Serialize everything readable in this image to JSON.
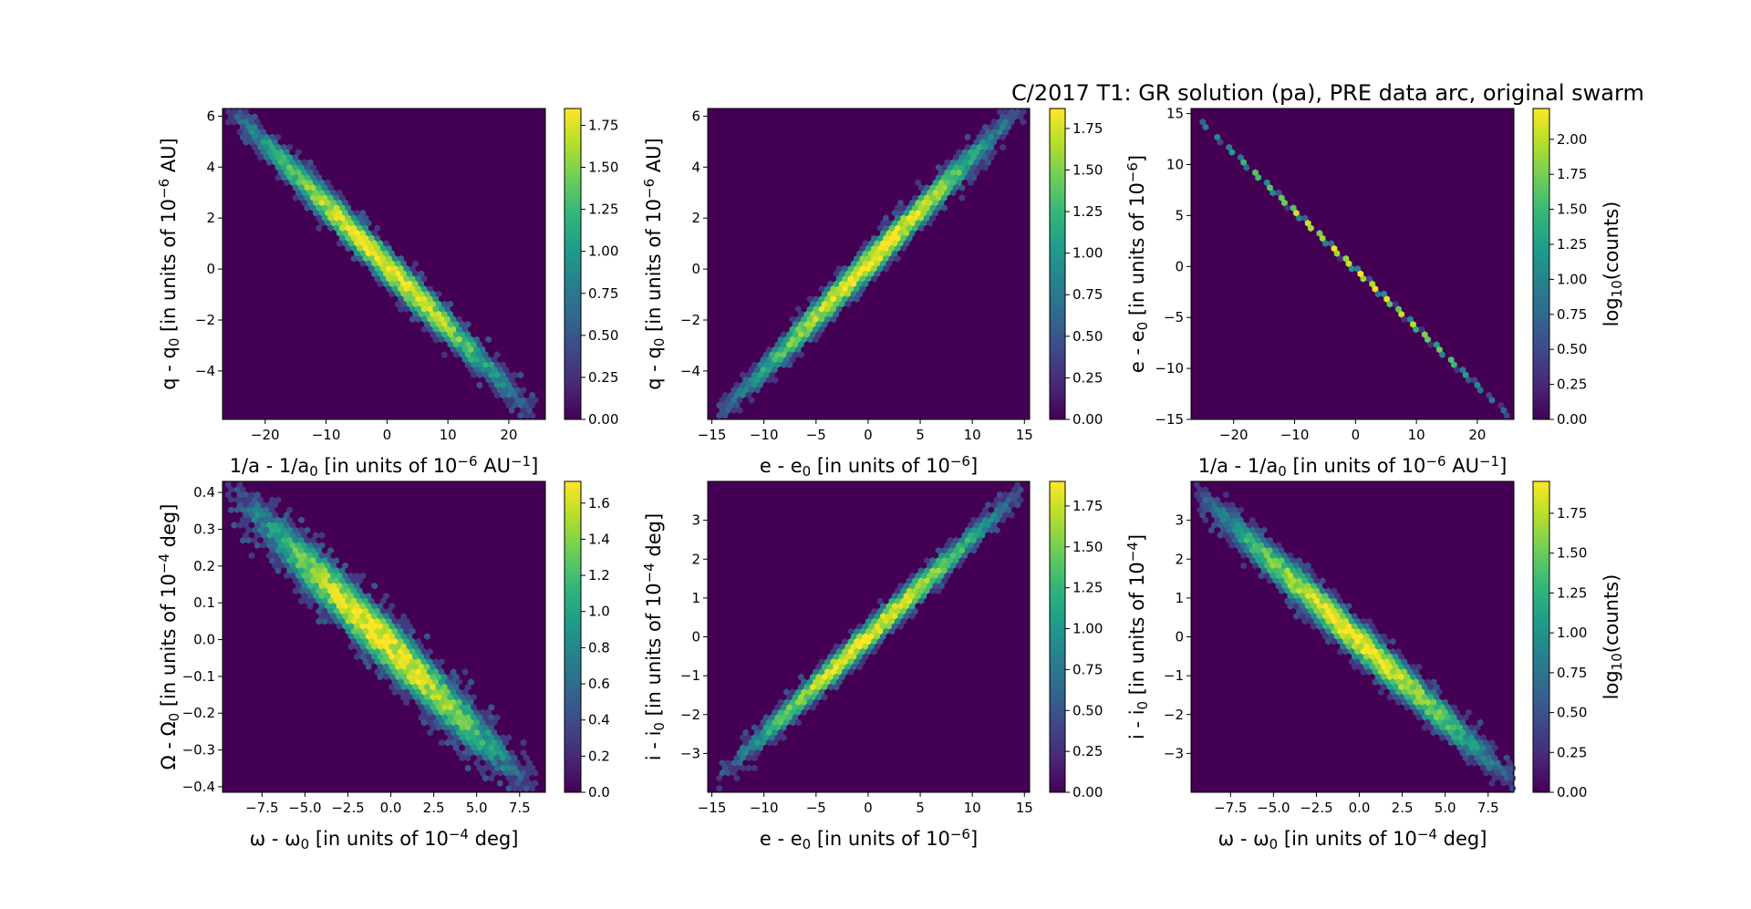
{
  "title": "C/2017 T1: GR solution (pa), PRE data arc,  original swarm",
  "colors": {
    "background": "#440154",
    "viridis": [
      "#440154",
      "#482878",
      "#3e4989",
      "#31688e",
      "#26828e",
      "#1f9e89",
      "#35b779",
      "#6ece58",
      "#b5de2b",
      "#fde725"
    ]
  },
  "chart_data": [
    {
      "type": "heatmap",
      "xlabel": [
        {
          "t": "1/a - 1/a"
        },
        {
          "t": "0",
          "s": "sub"
        },
        {
          "t": " [in units of 10"
        },
        {
          "t": "−6",
          "s": "sup"
        },
        {
          "t": " AU"
        },
        {
          "t": "−1",
          "s": "sup"
        },
        {
          "t": "]"
        }
      ],
      "ylabel": [
        {
          "t": "q - q"
        },
        {
          "t": "0",
          "s": "sub"
        },
        {
          "t": " [in units of 10"
        },
        {
          "t": "−6",
          "s": "sup"
        },
        {
          "t": " AU]"
        }
      ],
      "xlim": [
        -27,
        26
      ],
      "ylim": [
        -5.9,
        6.3
      ],
      "xticks": [
        -20,
        -10,
        0,
        10,
        20
      ],
      "xtick_labels": [
        "−20",
        "−10",
        "0",
        "10",
        "20"
      ],
      "yticks": [
        -4,
        -2,
        0,
        2,
        4,
        6
      ],
      "ytick_labels": [
        "−4",
        "−2",
        "0",
        "2",
        "4",
        "6"
      ],
      "trend": {
        "from": [
          -25,
          6.1
        ],
        "to": [
          23,
          -5.4
        ],
        "sigma_y": 0.33
      },
      "colorbar": {
        "range": [
          0,
          1.85
        ],
        "ticks": [
          0,
          0.25,
          0.5,
          0.75,
          1,
          1.25,
          1.5,
          1.75
        ],
        "tick_labels": [
          "0.00",
          "0.25",
          "0.50",
          "0.75",
          "1.00",
          "1.25",
          "1.50",
          "1.75"
        ],
        "label": []
      }
    },
    {
      "type": "heatmap",
      "xlabel": [
        {
          "t": "e - e"
        },
        {
          "t": "0",
          "s": "sub"
        },
        {
          "t": " [in units of 10"
        },
        {
          "t": "−6",
          "s": "sup"
        },
        {
          "t": "]"
        }
      ],
      "ylabel": [
        {
          "t": "q - q"
        },
        {
          "t": "0",
          "s": "sub"
        },
        {
          "t": " [in units of 10"
        },
        {
          "t": "−6",
          "s": "sup"
        },
        {
          "t": " AU]"
        }
      ],
      "xlim": [
        -15.4,
        15.5
      ],
      "ylim": [
        -5.9,
        6.3
      ],
      "xticks": [
        -15,
        -10,
        -5,
        0,
        5,
        10,
        15
      ],
      "xtick_labels": [
        "−15",
        "−10",
        "−5",
        "0",
        "5",
        "10",
        "15"
      ],
      "yticks": [
        -4,
        -2,
        0,
        2,
        4,
        6
      ],
      "ytick_labels": [
        "−4",
        "−2",
        "0",
        "2",
        "4",
        "6"
      ],
      "trend": {
        "from": [
          -13.5,
          -5.4
        ],
        "to": [
          14.2,
          6.1
        ],
        "sigma_y": 0.3
      },
      "colorbar": {
        "range": [
          0,
          1.87
        ],
        "ticks": [
          0,
          0.25,
          0.5,
          0.75,
          1,
          1.25,
          1.5,
          1.75
        ],
        "tick_labels": [
          "0.00",
          "0.25",
          "0.50",
          "0.75",
          "1.00",
          "1.25",
          "1.50",
          "1.75"
        ],
        "label": []
      }
    },
    {
      "type": "heatmap",
      "xlabel": [
        {
          "t": "1/a - 1/a"
        },
        {
          "t": "0",
          "s": "sub"
        },
        {
          "t": " [in units of 10"
        },
        {
          "t": "−6",
          "s": "sup"
        },
        {
          "t": " AU"
        },
        {
          "t": "−1",
          "s": "sup"
        },
        {
          "t": "]"
        }
      ],
      "ylabel": [
        {
          "t": "e - e"
        },
        {
          "t": "0",
          "s": "sub"
        },
        {
          "t": " [in units of 10"
        },
        {
          "t": "−6",
          "s": "sup"
        },
        {
          "t": "]"
        }
      ],
      "xlim": [
        -27,
        26
      ],
      "ylim": [
        -15,
        15.5
      ],
      "xticks": [
        -20,
        -10,
        0,
        10,
        20
      ],
      "xtick_labels": [
        "−20",
        "−10",
        "0",
        "10",
        "20"
      ],
      "yticks": [
        -15,
        -10,
        -5,
        0,
        5,
        10,
        15
      ],
      "ytick_labels": [
        "−15",
        "−10",
        "−5",
        "0",
        "5",
        "10",
        "15"
      ],
      "trend": {
        "from": [
          -25,
          14
        ],
        "to": [
          24,
          -14
        ],
        "sigma_y": 0.12
      },
      "colorbar": {
        "range": [
          0,
          2.22
        ],
        "ticks": [
          0,
          0.25,
          0.5,
          0.75,
          1,
          1.25,
          1.5,
          1.75,
          2
        ],
        "tick_labels": [
          "0.00",
          "0.25",
          "0.50",
          "0.75",
          "1.00",
          "1.25",
          "1.50",
          "1.75",
          "2.00"
        ],
        "label": [
          {
            "t": "log"
          },
          {
            "t": "10",
            "s": "sub"
          },
          {
            "t": "(counts)"
          }
        ]
      }
    },
    {
      "type": "heatmap",
      "xlabel": [
        {
          "t": "ω - ω"
        },
        {
          "t": "0",
          "s": "sub"
        },
        {
          "t": " [in units of 10"
        },
        {
          "t": "−4",
          "s": "sup"
        },
        {
          "t": " deg]"
        }
      ],
      "ylabel": [
        {
          "t": "Ω - Ω"
        },
        {
          "t": "0",
          "s": "sub"
        },
        {
          "t": " [in units of 10"
        },
        {
          "t": "−4",
          "s": "sup"
        },
        {
          "t": " deg]"
        }
      ],
      "xlim": [
        -9.8,
        9.0
      ],
      "ylim": [
        -0.415,
        0.43
      ],
      "xticks": [
        -7.5,
        -5,
        -2.5,
        0,
        2.5,
        5,
        7.5
      ],
      "xtick_labels": [
        "−7.5",
        "−5.0",
        "−2.5",
        "0.0",
        "2.5",
        "5.0",
        "7.5"
      ],
      "yticks": [
        -0.4,
        -0.3,
        -0.2,
        -0.1,
        0,
        0.1,
        0.2,
        0.3,
        0.4
      ],
      "ytick_labels": [
        "−0.4",
        "−0.3",
        "−0.2",
        "−0.1",
        "0.0",
        "0.1",
        "0.2",
        "0.3",
        "0.4"
      ],
      "trend": {
        "from": [
          -9.0,
          0.39
        ],
        "to": [
          8.0,
          -0.39
        ],
        "sigma_y": 0.035
      },
      "colorbar": {
        "range": [
          0,
          1.72
        ],
        "ticks": [
          0,
          0.2,
          0.4,
          0.6,
          0.8,
          1,
          1.2,
          1.4,
          1.6
        ],
        "tick_labels": [
          "0.0",
          "0.2",
          "0.4",
          "0.6",
          "0.8",
          "1.0",
          "1.2",
          "1.4",
          "1.6"
        ],
        "label": []
      }
    },
    {
      "type": "heatmap",
      "xlabel": [
        {
          "t": "e - e"
        },
        {
          "t": "0",
          "s": "sub"
        },
        {
          "t": " [in units of 10"
        },
        {
          "t": "−6",
          "s": "sup"
        },
        {
          "t": "]"
        }
      ],
      "ylabel": [
        {
          "t": "i - i"
        },
        {
          "t": "0",
          "s": "sub"
        },
        {
          "t": " [in units of 10"
        },
        {
          "t": "−4",
          "s": "sup"
        },
        {
          "t": " deg]"
        }
      ],
      "xlim": [
        -15.4,
        15.5
      ],
      "ylim": [
        -4.0,
        4.0
      ],
      "xticks": [
        -15,
        -10,
        -5,
        0,
        5,
        10,
        15
      ],
      "xtick_labels": [
        "−15",
        "−10",
        "−5",
        "0",
        "5",
        "10",
        "15"
      ],
      "yticks": [
        -3,
        -2,
        -1,
        0,
        1,
        2,
        3
      ],
      "ytick_labels": [
        "−3",
        "−2",
        "−1",
        "0",
        "1",
        "2",
        "3"
      ],
      "trend": {
        "from": [
          -13.5,
          -3.4
        ],
        "to": [
          13.8,
          3.5
        ],
        "sigma_y": 0.17
      },
      "colorbar": {
        "range": [
          0,
          1.9
        ],
        "ticks": [
          0,
          0.25,
          0.5,
          0.75,
          1,
          1.25,
          1.5,
          1.75
        ],
        "tick_labels": [
          "0.00",
          "0.25",
          "0.50",
          "0.75",
          "1.00",
          "1.25",
          "1.50",
          "1.75"
        ],
        "label": []
      }
    },
    {
      "type": "heatmap",
      "xlabel": [
        {
          "t": "ω - ω"
        },
        {
          "t": "0",
          "s": "sub"
        },
        {
          "t": " [in units of 10"
        },
        {
          "t": "−4",
          "s": "sup"
        },
        {
          "t": " deg]"
        }
      ],
      "ylabel": [
        {
          "t": "i - i"
        },
        {
          "t": "0",
          "s": "sub"
        },
        {
          "t": " [in units of 10"
        },
        {
          "t": "−4",
          "s": "sup"
        },
        {
          "t": "]"
        }
      ],
      "xlim": [
        -9.8,
        9.0
      ],
      "ylim": [
        -4.0,
        4.0
      ],
      "xticks": [
        -7.5,
        -5,
        -2.5,
        0,
        2.5,
        5,
        7.5
      ],
      "xtick_labels": [
        "−7.5",
        "−5.0",
        "−2.5",
        "0.0",
        "2.5",
        "5.0",
        "7.5"
      ],
      "yticks": [
        -3,
        -2,
        -1,
        0,
        1,
        2,
        3
      ],
      "ytick_labels": [
        "−3",
        "−2",
        "−1",
        "0",
        "1",
        "2",
        "3"
      ],
      "trend": {
        "from": [
          -9.0,
          3.5
        ],
        "to": [
          8.4,
          -3.5
        ],
        "sigma_y": 0.22
      },
      "colorbar": {
        "range": [
          0,
          1.95
        ],
        "ticks": [
          0,
          0.25,
          0.5,
          0.75,
          1,
          1.25,
          1.5,
          1.75
        ],
        "tick_labels": [
          "0.00",
          "0.25",
          "0.50",
          "0.75",
          "1.00",
          "1.25",
          "1.50",
          "1.75"
        ],
        "label": [
          {
            "t": "log"
          },
          {
            "t": "10",
            "s": "sub"
          },
          {
            "t": "(counts)"
          }
        ]
      }
    }
  ]
}
